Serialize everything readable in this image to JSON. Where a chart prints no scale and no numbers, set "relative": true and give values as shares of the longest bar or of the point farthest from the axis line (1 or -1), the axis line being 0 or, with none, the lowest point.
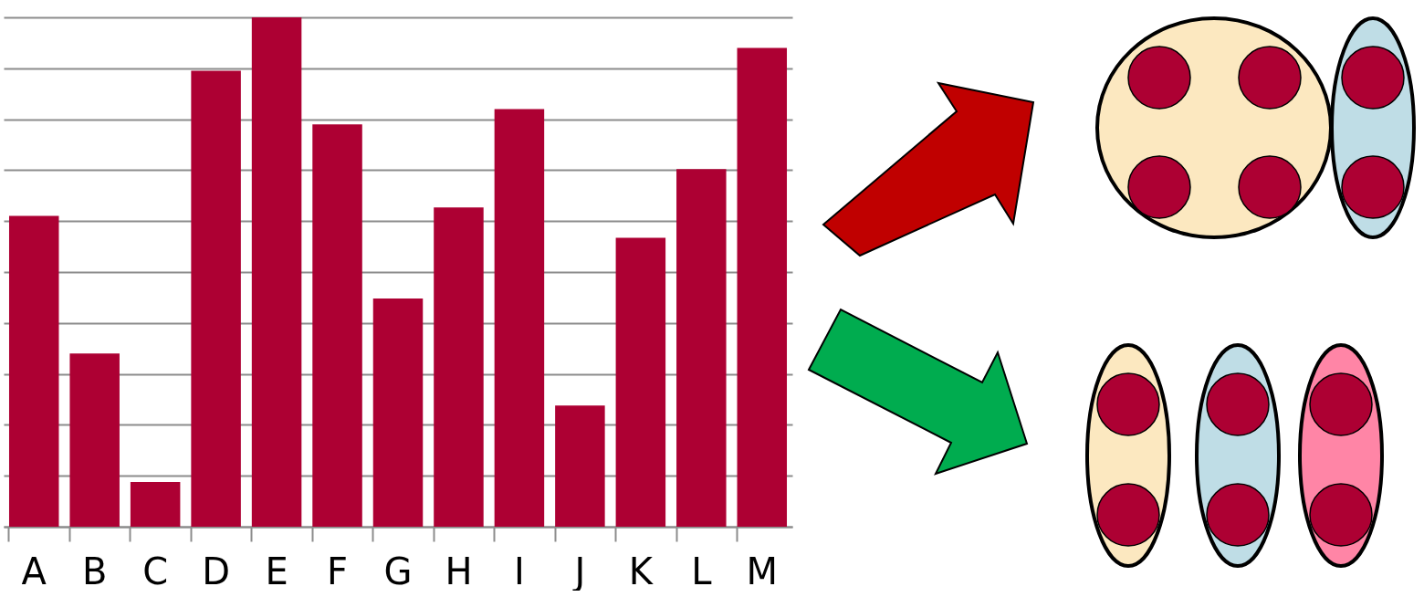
{
  "chart_data": {
    "type": "bar",
    "relative": true,
    "grid": "y",
    "color": "#ad0033",
    "categories": [
      "A",
      "B",
      "C",
      "D",
      "E",
      "F",
      "G",
      "H",
      "I",
      "J",
      "K",
      "L",
      "M"
    ],
    "values": [
      0.61,
      0.34,
      0.088,
      0.895,
      1,
      0.79,
      0.448,
      0.627,
      0.82,
      0.238,
      0.567,
      0.702,
      0.94
    ]
  }
}
